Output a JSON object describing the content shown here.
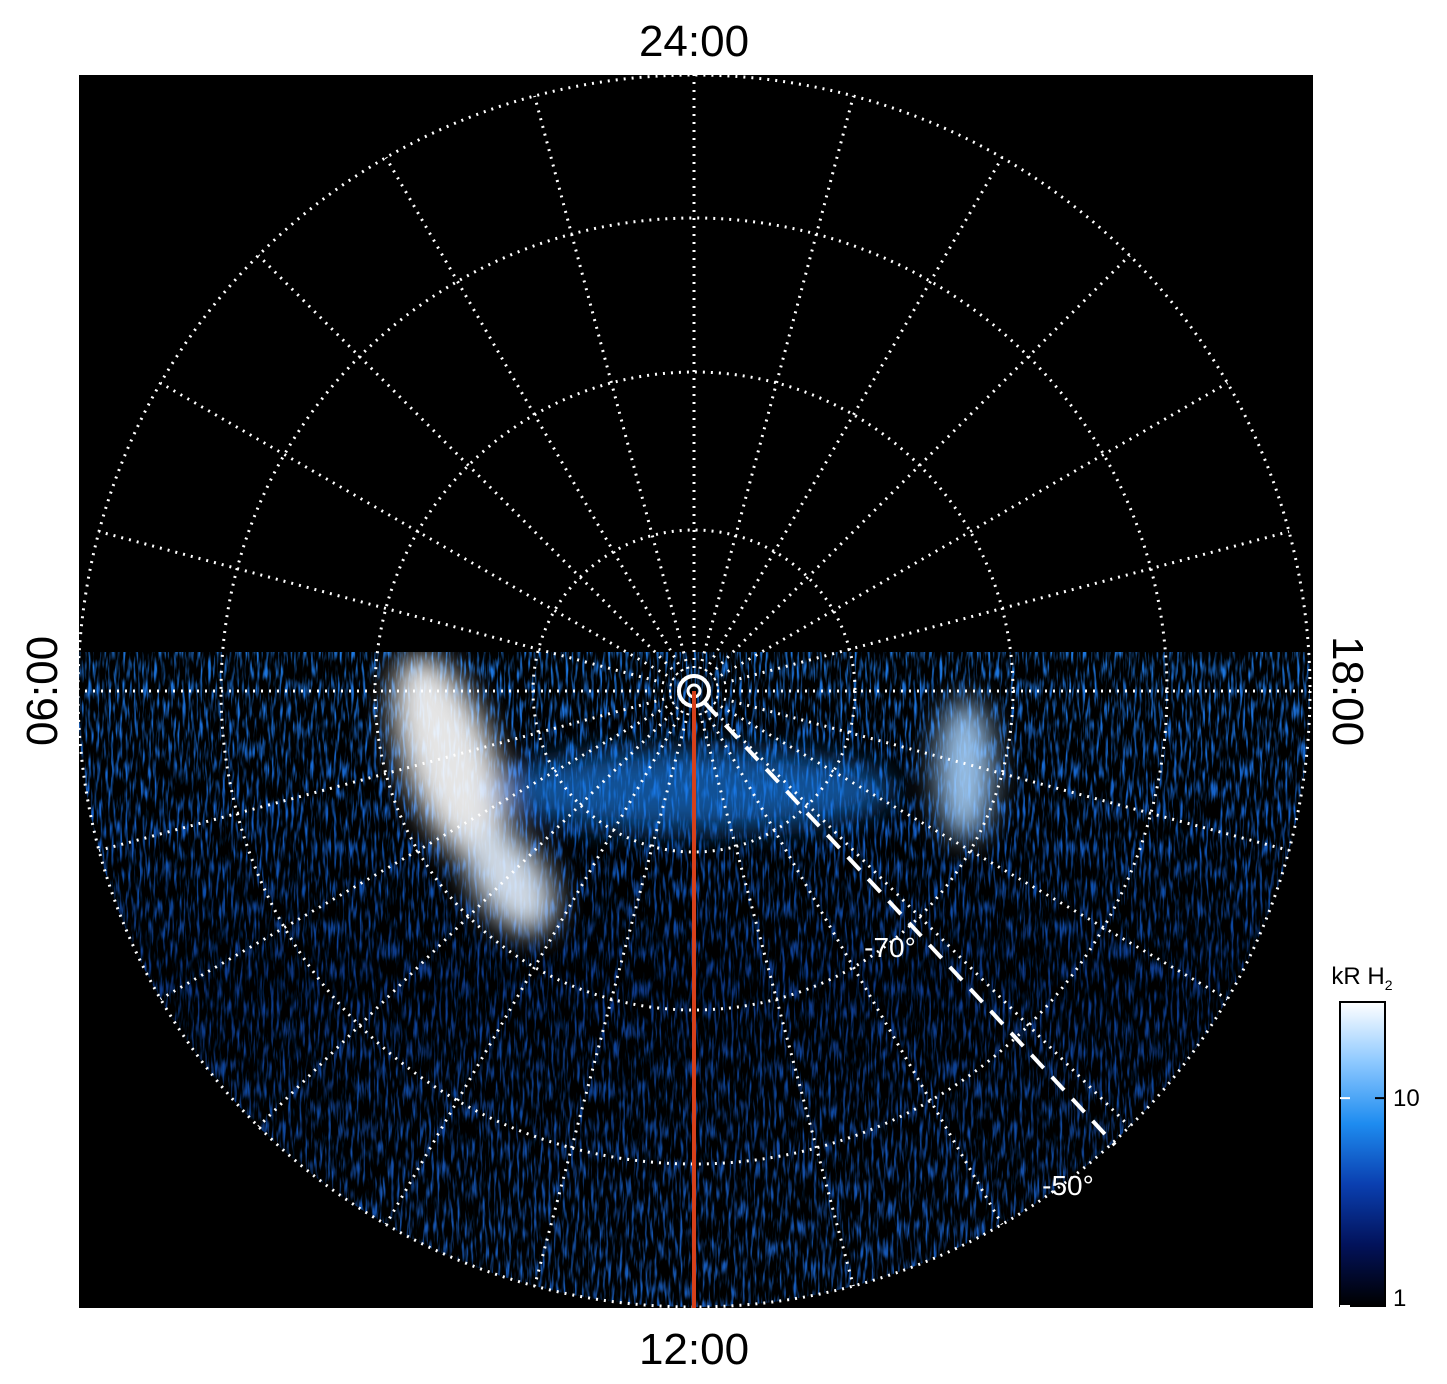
{
  "chart_data": {
    "type": "polar-image",
    "hour_labels": {
      "top": "24:00",
      "left": "06:00",
      "right": "18:00",
      "bottom": "12:00"
    },
    "latitude_labels": [
      "-70°",
      "-50°"
    ],
    "colorbar": {
      "label": "kR H",
      "label_subscript": "2",
      "scale": "log",
      "ylim": [
        1,
        29
      ],
      "yticks": [
        1,
        10
      ],
      "colors": [
        "#000000",
        "#02125a",
        "#0a3fb0",
        "#1e8cf0",
        "#8cc8ff",
        "#ffffff"
      ]
    }
  }
}
